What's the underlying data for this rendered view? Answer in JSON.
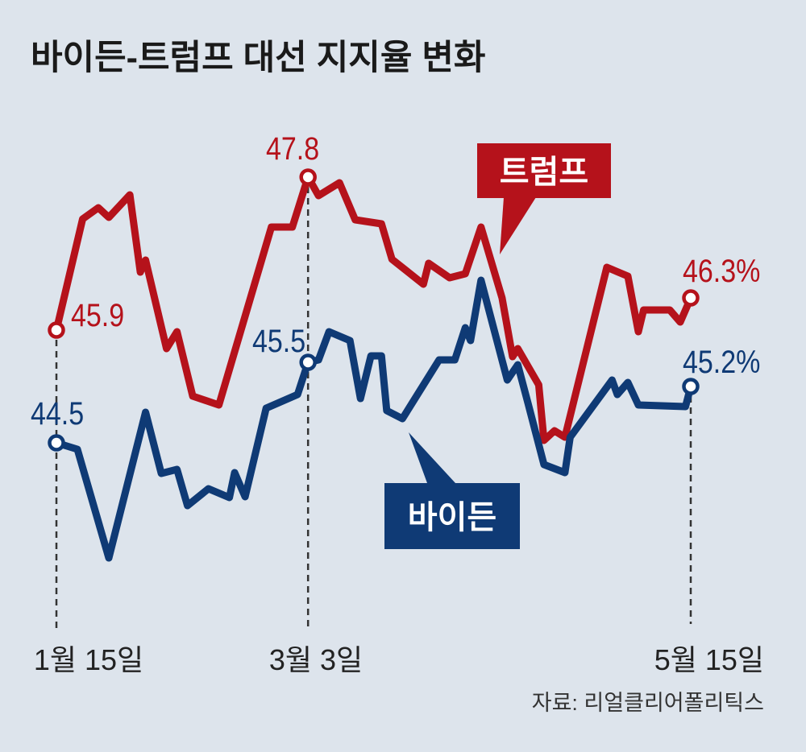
{
  "chart_data": {
    "type": "line",
    "title": "바이든-트럼프 대선 지지율 변화",
    "x_unit": "days since Jan 15",
    "xlim": [
      0,
      121
    ],
    "ylim": [
      43,
      48
    ],
    "grid": false,
    "x_tick_labels": [
      "1월 15일",
      "3월 3일",
      "5월 15일"
    ],
    "x_tick_days": [
      0,
      48,
      121
    ],
    "source": "자료: 리얼클리어폴리틱스",
    "colors": {
      "trump": "#b5121b",
      "biden": "#0f3a75",
      "background": "#dde4ec"
    },
    "series": [
      {
        "name": "트럼프",
        "x": [
          0,
          5,
          8,
          10,
          14,
          16,
          17,
          21,
          23,
          26,
          31,
          41,
          45,
          48,
          50,
          54,
          57,
          62,
          64,
          70,
          71,
          75,
          78,
          81,
          85,
          87,
          88,
          92,
          93,
          95,
          97,
          105,
          109,
          111,
          112,
          117,
          119,
          121
        ],
        "values": [
          45.9,
          47.28,
          47.42,
          47.3,
          47.58,
          46.62,
          46.77,
          45.67,
          45.88,
          45.08,
          44.97,
          47.18,
          47.18,
          47.8,
          47.57,
          47.73,
          47.27,
          47.22,
          46.78,
          46.47,
          46.73,
          46.55,
          46.6,
          47.18,
          46.3,
          45.57,
          45.67,
          45.22,
          44.53,
          44.65,
          44.57,
          46.68,
          46.57,
          45.88,
          46.15,
          46.15,
          46.0,
          46.3
        ],
        "labels": {
          "start": "45.9",
          "peak": "47.8",
          "end": "46.3%"
        }
      },
      {
        "name": "바이든",
        "x": [
          0,
          4,
          10,
          17,
          20,
          23,
          25,
          29,
          33,
          34,
          36,
          40,
          46,
          48,
          50,
          52,
          56,
          58,
          60,
          62,
          63,
          66,
          73,
          76,
          78,
          79,
          81,
          86,
          88,
          90,
          93,
          97,
          98,
          106,
          107,
          109,
          111,
          120,
          121
        ],
        "values": [
          44.5,
          44.42,
          43.07,
          44.88,
          44.12,
          44.17,
          43.72,
          43.93,
          43.82,
          44.13,
          43.83,
          44.93,
          45.1,
          45.5,
          45.53,
          45.88,
          45.77,
          45.05,
          45.58,
          45.58,
          44.9,
          44.8,
          45.53,
          45.53,
          45.93,
          45.77,
          46.52,
          45.28,
          45.47,
          44.98,
          44.23,
          44.13,
          44.57,
          45.28,
          45.1,
          45.25,
          44.97,
          44.95,
          45.2
        ],
        "labels": {
          "start": "44.5",
          "mid": "45.5",
          "end": "45.2%"
        }
      }
    ]
  }
}
